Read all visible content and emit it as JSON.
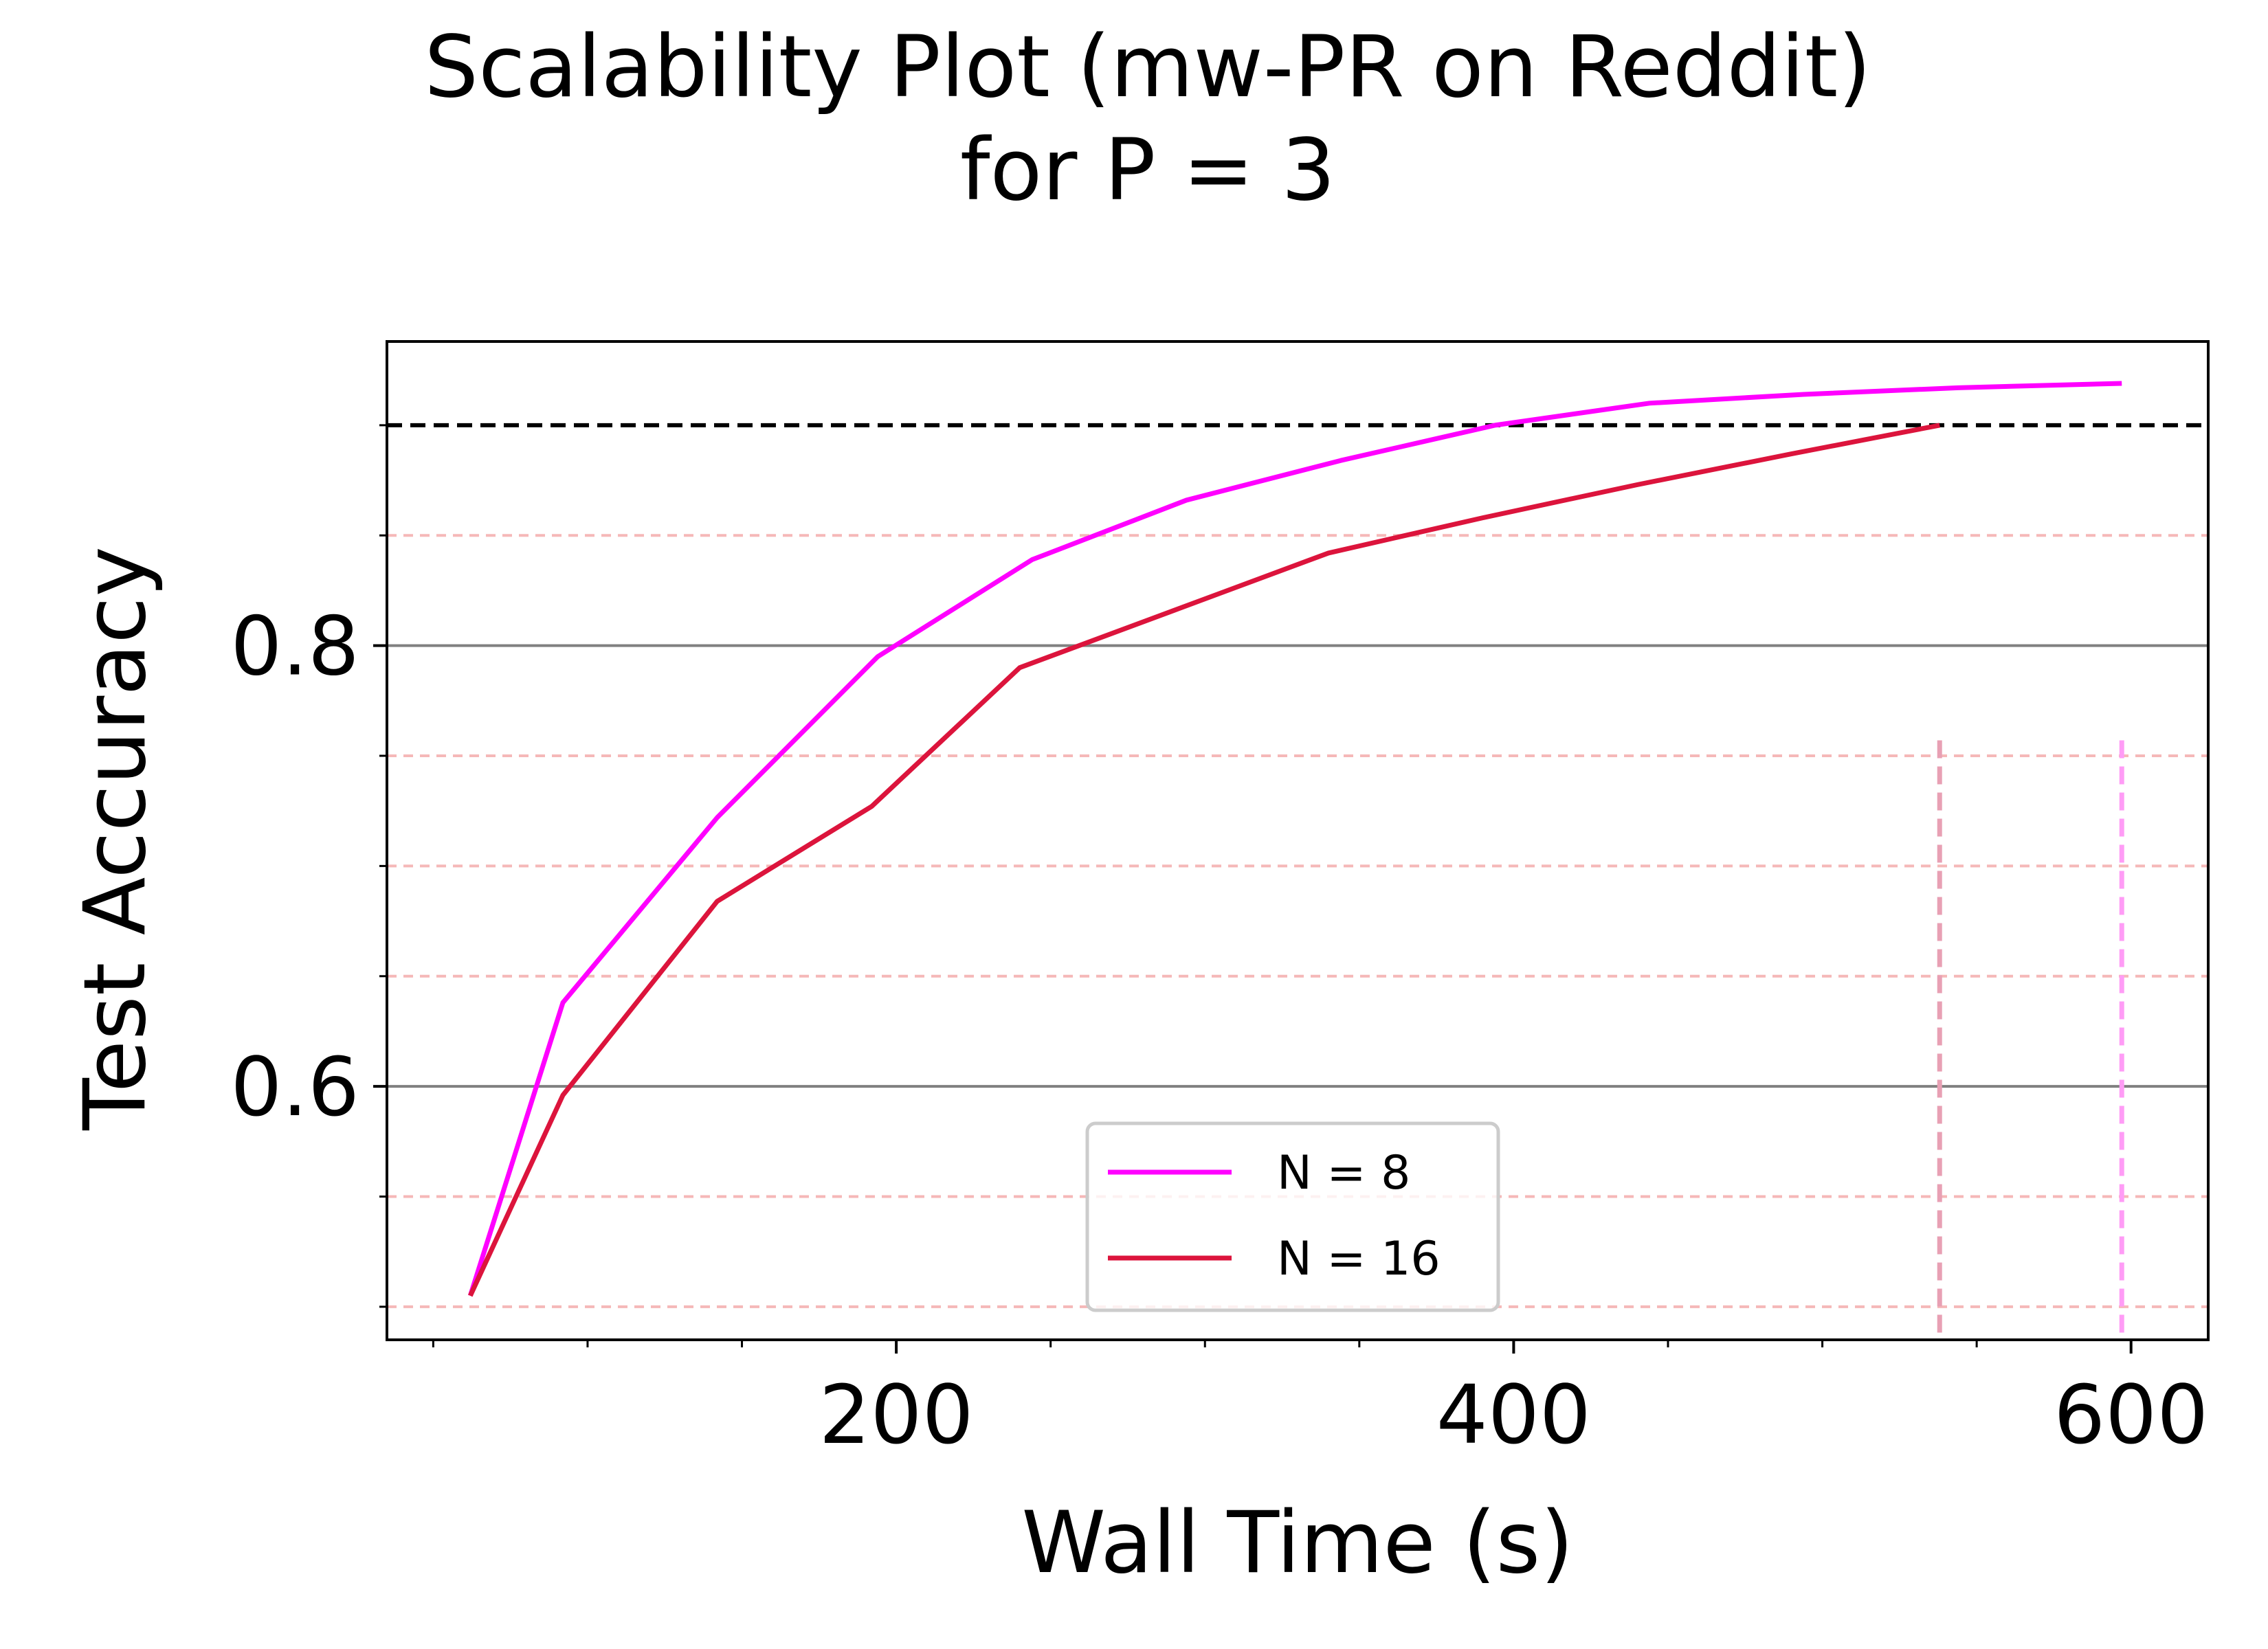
{
  "chart_data": {
    "type": "line",
    "title": "Scalability Plot (mw-PR on Reddit)",
    "subtitle": "for P = 3",
    "xlabel": "Wall Time (s)",
    "ylabel": "Test Accuracy",
    "xlim": [
      35,
      625
    ],
    "ylim": [
      0.485,
      0.938
    ],
    "x_ticks": [
      200,
      400,
      600
    ],
    "x_tick_labels": [
      "200",
      "400",
      "600"
    ],
    "x_minor_ticks": [
      50,
      100,
      150,
      250,
      300,
      350,
      450,
      500,
      550
    ],
    "y_ticks": [
      0.6,
      0.8
    ],
    "y_tick_labels": [
      "0.6",
      "0.8"
    ],
    "y_minor_ticks": [
      0.5,
      0.55,
      0.65,
      0.7,
      0.75,
      0.85,
      0.9
    ],
    "grid_major_y": [
      0.6,
      0.8
    ],
    "grid_minor_y": [
      0.5,
      0.55,
      0.65,
      0.7,
      0.75,
      0.85
    ],
    "target_accuracy": 0.9,
    "series": [
      {
        "name": "N = 8",
        "color": "#ff00ff",
        "x": [
          62,
          92,
          142,
          194,
          244,
          294,
          344,
          394,
          444,
          494,
          544,
          597
        ],
        "y": [
          0.505,
          0.638,
          0.722,
          0.795,
          0.839,
          0.866,
          0.884,
          0.9,
          0.91,
          0.914,
          0.917,
          0.919
        ]
      },
      {
        "name": "N = 16",
        "color": "#dc143c",
        "x": [
          62,
          92,
          142,
          192,
          240,
          290,
          340,
          390,
          440,
          490,
          538
        ],
        "y": [
          0.505,
          0.596,
          0.684,
          0.727,
          0.79,
          0.816,
          0.842,
          0.858,
          0.873,
          0.887,
          0.9
        ]
      }
    ],
    "vertical_markers": [
      {
        "x": 538,
        "color": "#e8a0b4",
        "y_top": 0.757
      },
      {
        "x": 597,
        "color": "#ff9cf6",
        "y_top": 0.757
      }
    ],
    "legend_position": "lower center",
    "grid": true
  }
}
